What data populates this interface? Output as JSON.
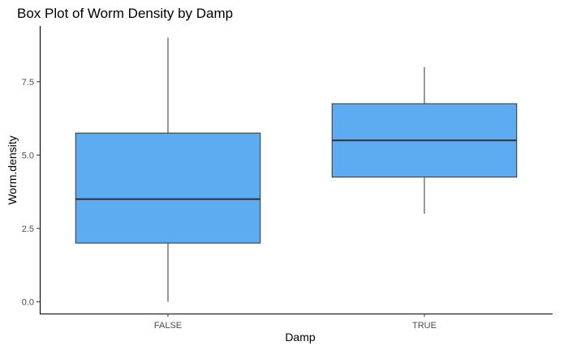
{
  "chart_data": {
    "type": "box",
    "title": "Box Plot of Worm Density by Damp",
    "xlabel": "Damp",
    "ylabel": "Worm.density",
    "categories": [
      "FALSE",
      "TRUE"
    ],
    "boxes": [
      {
        "category": "FALSE",
        "min": 0,
        "q1": 2,
        "median": 3.5,
        "q3": 5.75,
        "max": 9
      },
      {
        "category": "TRUE",
        "min": 3,
        "q1": 4.25,
        "median": 5.5,
        "q3": 6.75,
        "max": 8
      }
    ],
    "ylim": [
      -0.4,
      9.4
    ],
    "yticks": [
      0,
      2.5,
      5,
      7.5
    ],
    "ytick_labels": [
      "0.0",
      "2.5",
      "5.0",
      "7.5"
    ],
    "grid": false,
    "fill_color": "#5dabf0",
    "line_color": "#333333"
  }
}
